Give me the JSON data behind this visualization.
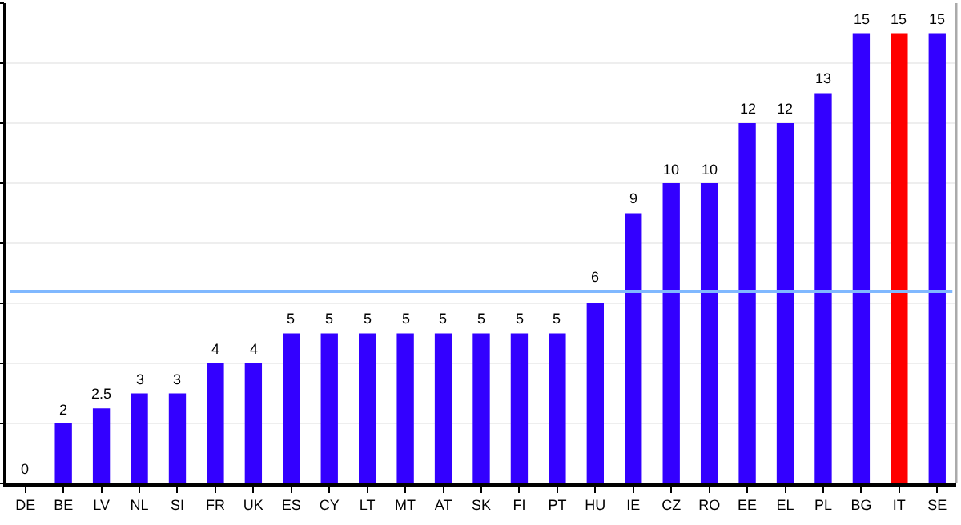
{
  "chart_data": {
    "type": "bar",
    "categories": [
      "DE",
      "BE",
      "LV",
      "NL",
      "SI",
      "FR",
      "UK",
      "ES",
      "CY",
      "LT",
      "MT",
      "AT",
      "SK",
      "FI",
      "PT",
      "HU",
      "IE",
      "CZ",
      "RO",
      "EE",
      "EL",
      "PL",
      "BG",
      "IT",
      "SE"
    ],
    "values": [
      0,
      2,
      2.5,
      3,
      3,
      4,
      4,
      5,
      5,
      5,
      5,
      5,
      5,
      5,
      5,
      6,
      9,
      10,
      10,
      12,
      12,
      13,
      15,
      15,
      15
    ],
    "colors": [
      "#3300ff",
      "#3300ff",
      "#3300ff",
      "#3300ff",
      "#3300ff",
      "#3300ff",
      "#3300ff",
      "#3300ff",
      "#3300ff",
      "#3300ff",
      "#3300ff",
      "#3300ff",
      "#3300ff",
      "#3300ff",
      "#3300ff",
      "#3300ff",
      "#3300ff",
      "#3300ff",
      "#3300ff",
      "#3300ff",
      "#3300ff",
      "#3300ff",
      "#3300ff",
      "#ff0000",
      "#3300ff"
    ],
    "data_labels": true,
    "ylim": [
      0,
      16
    ],
    "yticks": [
      {
        "value": 0,
        "label": null
      },
      {
        "value": 2,
        "label": null
      },
      {
        "value": 4,
        "label": null
      },
      {
        "value": 6,
        "label": null
      },
      {
        "value": 8,
        "label": null
      },
      {
        "value": 10,
        "label": null
      },
      {
        "value": 12,
        "label": null
      },
      {
        "value": 14,
        "label": null
      },
      {
        "value": 16,
        "label": null
      }
    ],
    "grid": "y",
    "tick_labels": "x",
    "ref_lines": [
      {
        "axis": "y",
        "value": 6.4,
        "color": "#80b8ff"
      }
    ]
  }
}
